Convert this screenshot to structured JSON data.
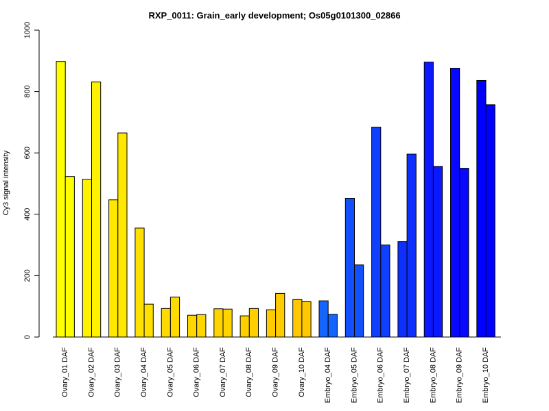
{
  "chart_data": {
    "type": "bar",
    "title": "RXP_0011: Grain_early development; Os05g0101300_02866",
    "xlabel": "",
    "ylabel": "Cy3 signal intensity",
    "ylim": [
      0,
      1000
    ],
    "yticks": [
      0,
      200,
      400,
      600,
      800,
      1000
    ],
    "grid": false,
    "legend": "none",
    "categories": [
      "Ovary_01 DAF",
      "Ovary_02 DAF",
      "Ovary_03 DAF",
      "Ovary_04 DAF",
      "Ovary_05 DAF",
      "Ovary_06 DAF",
      "Ovary_07 DAF",
      "Ovary_08 DAF",
      "Ovary_09 DAF",
      "Ovary_10 DAF",
      "Embryo_04 DAF",
      "Embryo_05 DAF",
      "Embryo_06 DAF",
      "Embryo_07 DAF",
      "Embryo_08 DAF",
      "Embryo_09 DAF",
      "Embryo_10 DAF"
    ],
    "colors": [
      "#ffff00",
      "#fff200",
      "#ffe800",
      "#ffe000",
      "#ffda00",
      "#ffd700",
      "#ffd400",
      "#ffd000",
      "#ffcc00",
      "#ffc800",
      "#1464ff",
      "#1250ff",
      "#1040ff",
      "#0e30ff",
      "#0a18ff",
      "#0808ff",
      "#0000ff"
    ],
    "series": [
      {
        "values": [
          898,
          514,
          447,
          355,
          93,
          71,
          92,
          69,
          89,
          122,
          118,
          452,
          684,
          311,
          896,
          876,
          836
        ]
      },
      {
        "values": [
          523,
          831,
          665,
          107,
          130,
          73,
          91,
          93,
          142,
          115,
          74,
          235,
          300,
          596,
          556,
          550,
          757
        ]
      }
    ]
  }
}
